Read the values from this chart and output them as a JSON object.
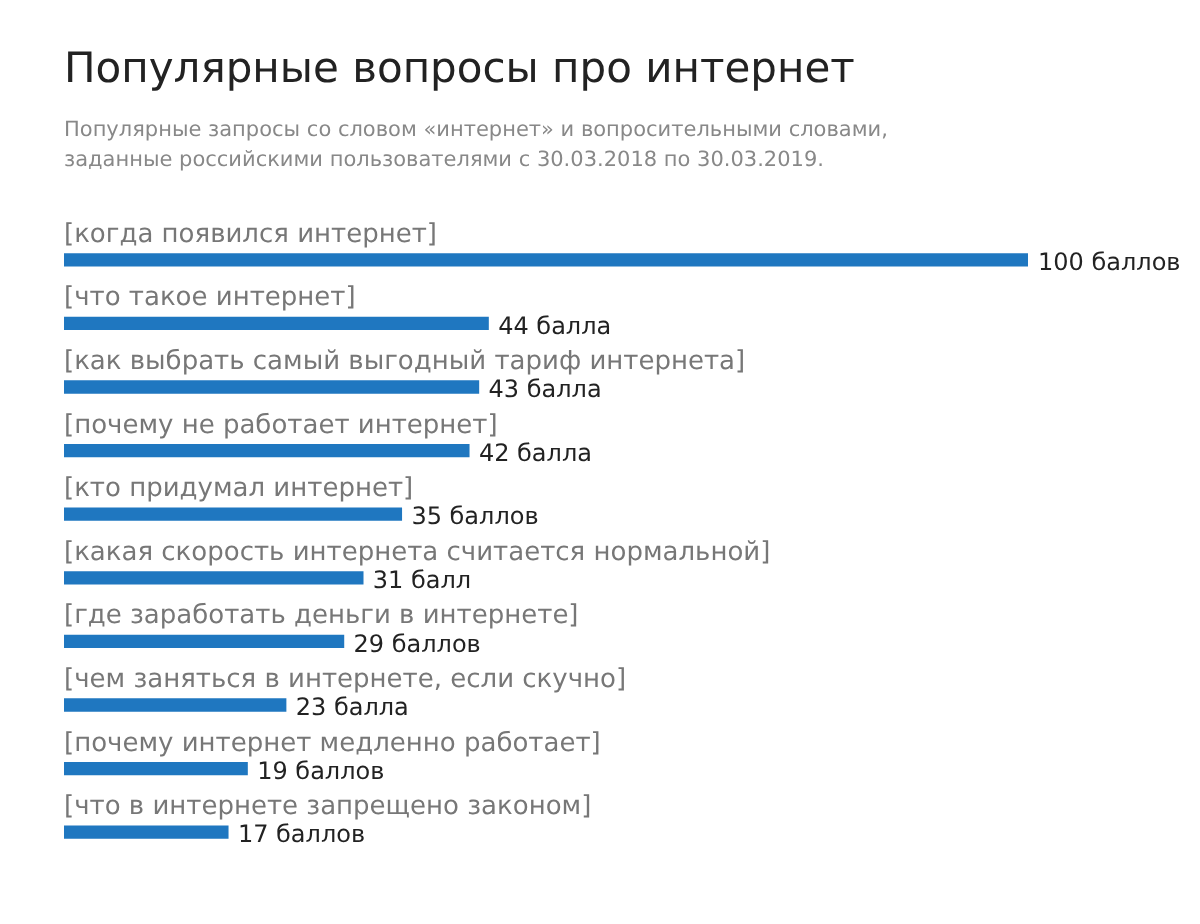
{
  "chart_data": {
    "type": "bar",
    "orientation": "horizontal",
    "title": "Популярные вопросы про интернет",
    "subtitle": "Популярные запросы со словом «интернет» и вопросительными словами, заданные российскими пользователями с 30.03.2018 по 30.03.2019.",
    "categories": [
      "[когда появился интернет]",
      "[что такое интернет]",
      "[как выбрать самый выгодный тариф интернета]",
      "[почему не работает интернет]",
      "[кто придумал интернет]",
      "[какая скорость интернета считается нормальной]",
      "[где заработать деньги в интернете]",
      "[чем заняться в интернете, если скучно]",
      "[почему интернет медленно работает]",
      "[что в интернете запрещено законом]"
    ],
    "values": [
      100,
      44,
      43,
      42,
      35,
      31,
      29,
      23,
      19,
      17
    ],
    "value_labels": [
      "100 баллов",
      "44 балла",
      "43 балла",
      "42 балла",
      "35 баллов",
      "31 балл",
      "29 баллов",
      "23 балла",
      "19 баллов",
      "17 баллов"
    ],
    "color": "#1f77c0"
  }
}
